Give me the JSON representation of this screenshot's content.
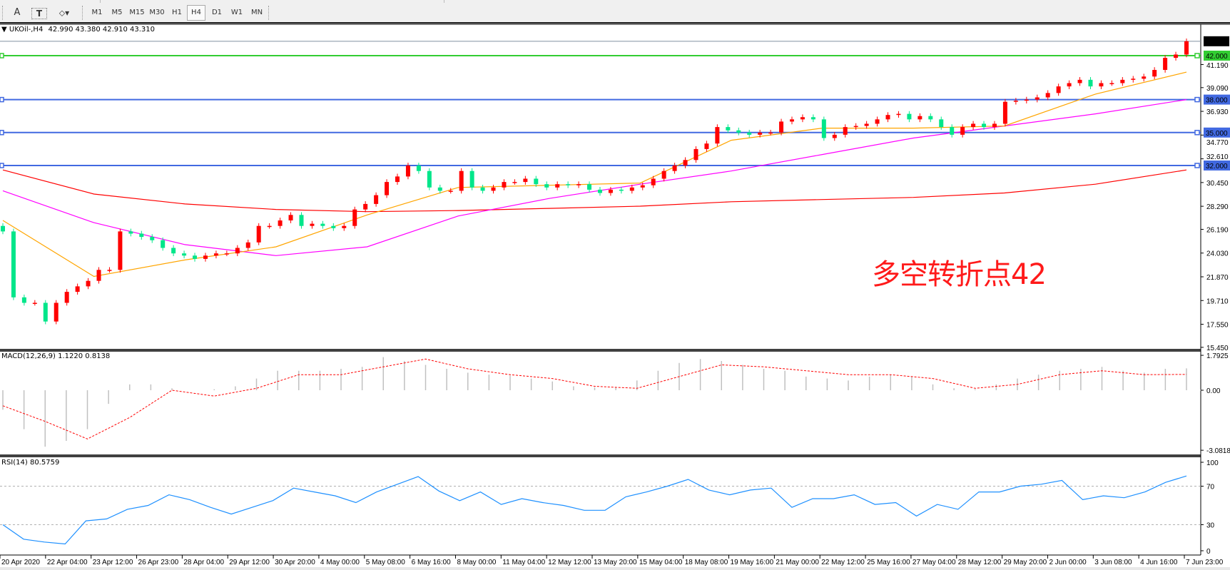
{
  "toolbar": {
    "tools": [
      {
        "name": "text-label-tool",
        "glyph": "A"
      },
      {
        "name": "text-box-tool",
        "glyph": "T"
      },
      {
        "name": "shapes-tool",
        "glyph": "⬦▾"
      }
    ],
    "timeframes": [
      "M1",
      "M5",
      "M15",
      "M30",
      "H1",
      "H4",
      "D1",
      "W1",
      "MN"
    ],
    "selected_timeframe": "H4"
  },
  "chart": {
    "symbol": "UKOil-,H4",
    "ohlc": "42.990 43.380 42.910 43.310",
    "annotation": "多空转折点42",
    "colors": {
      "bull": "#ff0000",
      "bear": "#00e68a",
      "ma_fast": "#ffa500",
      "ma_mid": "#ff00ff",
      "ma_slow": "#ff0000",
      "hline_green": "#32cd32",
      "hline_blue": "#4169e1",
      "macd_hist": "#c0c0c0",
      "macd_signal": "#ff0000",
      "rsi": "#1e90ff"
    },
    "price_axis_labels": [
      "41.190",
      "39.090",
      "36.930",
      "34.770",
      "32.610",
      "30.450",
      "28.290",
      "26.190",
      "24.030",
      "21.870",
      "19.710",
      "17.550",
      "15.450"
    ],
    "current_price": "43.310",
    "horizontal_lines": [
      {
        "value": "42.000",
        "color": "green"
      },
      {
        "value": "38.000",
        "color": "blue"
      },
      {
        "value": "35.000",
        "color": "blue"
      },
      {
        "value": "32.000",
        "color": "blue"
      }
    ],
    "closes": [
      26,
      20,
      19.5,
      19.5,
      17.8,
      19.5,
      20.5,
      21,
      21.5,
      22.5,
      22.5,
      26,
      25.8,
      25.5,
      25.2,
      24.5,
      24,
      23.8,
      23.5,
      23.8,
      24,
      24,
      24.5,
      25,
      26.5,
      26.5,
      27,
      27.5,
      26.5,
      26.7,
      26.5,
      26.3,
      26.5,
      28,
      28.5,
      29.3,
      30.5,
      31,
      32,
      31.5,
      30,
      29.7,
      29.7,
      31.5,
      30,
      29.7,
      30,
      30.5,
      30.5,
      30.8,
      30.3,
      30,
      30.3,
      30.2,
      30.3,
      29.8,
      29.5,
      29.8,
      29.7,
      30,
      30.2,
      30.8,
      31.5,
      32,
      32.5,
      33.5,
      34,
      35.5,
      35.2,
      35,
      34.8,
      35,
      35,
      36,
      36.2,
      36.4,
      36.2,
      34.5,
      34.8,
      35.5,
      35.6,
      35.8,
      36.2,
      36.6,
      36.7,
      36.2,
      36.5,
      36.2,
      35.5,
      34.8,
      35.5,
      35.8,
      35.5,
      35.8,
      37.8,
      37.9,
      38,
      38.2,
      38.6,
      39.2,
      39.5,
      39.8,
      39.2,
      39.5,
      39.5,
      39.8,
      39.9,
      40.1,
      40.7,
      41.8,
      42.1,
      43.31
    ],
    "moving_averages": [
      {
        "color": "ma_slow",
        "values": [
          31.6,
          29.4,
          28.5,
          28.0,
          27.8,
          27.9,
          28.1,
          28.3,
          28.7,
          28.9,
          29.1,
          29.5,
          30.3,
          31.6
        ]
      },
      {
        "color": "ma_mid",
        "values": [
          29.7,
          26.8,
          24.8,
          23.8,
          24.6,
          27.4,
          29.0,
          30.3,
          31.5,
          33.0,
          34.5,
          35.6,
          36.7,
          38.0
        ]
      },
      {
        "color": "ma_fast",
        "values": [
          27.0,
          21.9,
          23.4,
          24.6,
          27.5,
          30.0,
          30.2,
          30.4,
          34.3,
          35.4,
          35.4,
          35.6,
          38.5,
          40.5
        ]
      }
    ]
  },
  "macd": {
    "label": "MACD(12,26,9) 1.1220 0.8138",
    "axis_labels": [
      "1.7925",
      "0.00",
      "-3.0818"
    ],
    "histogram": [
      -1.0,
      -2.0,
      -2.9,
      -2.6,
      -2.0,
      -0.7,
      0.3,
      0.3,
      0.1,
      0.0,
      0.05,
      0.2,
      0.6,
      1.0,
      1.0,
      1.0,
      1.1,
      1.2,
      1.7,
      1.5,
      1.3,
      1.1,
      0.9,
      0.8,
      0.75,
      0.6,
      0.45,
      0.2,
      0.15,
      0.15,
      0.5,
      1.0,
      1.4,
      1.6,
      1.5,
      1.3,
      1.1,
      1.0,
      0.7,
      0.6,
      0.5,
      0.7,
      0.8,
      0.7,
      0.3,
      0.1,
      0.05,
      0.3,
      0.6,
      0.8,
      1.0,
      1.1,
      1.2,
      1.0,
      0.9,
      1.1,
      1.122
    ],
    "signal": [
      -0.8,
      -1.6,
      -2.5,
      -1.4,
      0.0,
      -0.3,
      0.1,
      0.8,
      0.8,
      1.2,
      1.6,
      1.1,
      0.8,
      0.6,
      0.2,
      0.1,
      0.7,
      1.3,
      1.2,
      1.0,
      0.8,
      0.8,
      0.6,
      0.1,
      0.3,
      0.8,
      1.0,
      0.8,
      0.8138
    ]
  },
  "rsi": {
    "label": "RSI(14) 80.5759",
    "axis_labels": [
      "100",
      "70",
      "30",
      "0"
    ],
    "levels": [
      70,
      30
    ],
    "values": [
      30,
      15,
      12,
      10,
      34,
      36,
      46,
      50,
      61,
      56,
      48,
      41,
      48,
      55,
      68,
      64,
      60,
      53,
      64,
      72,
      80,
      65,
      55,
      64,
      51,
      57,
      53,
      50,
      45,
      45,
      59,
      64,
      70,
      77,
      66,
      61,
      66,
      68,
      48,
      57,
      57,
      61,
      51,
      53,
      39,
      51,
      46,
      64,
      64,
      70,
      72,
      76,
      56,
      60,
      58,
      64,
      74,
      80.58
    ]
  },
  "time_axis": [
    "20 Apr 2020",
    "22 Apr 04:00",
    "23 Apr 12:00",
    "26 Apr 23:00",
    "28 Apr 04:00",
    "29 Apr 12:00",
    "30 Apr 20:00",
    "4 May 00:00",
    "5 May 08:00",
    "6 May 16:00",
    "8 May 00:00",
    "11 May 04:00",
    "12 May 12:00",
    "13 May 20:00",
    "15 May 04:00",
    "18 May 08:00",
    "19 May 16:00",
    "21 May 00:00",
    "22 May 12:00",
    "25 May 16:00",
    "27 May 04:00",
    "28 May 12:00",
    "29 May 20:00",
    "2 Jun 00:00",
    "3 Jun 08:00",
    "4 Jun 16:00",
    "7 Jun 23:00"
  ]
}
